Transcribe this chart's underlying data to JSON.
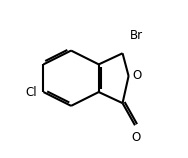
{
  "bg_color": "#ffffff",
  "line_color": "#000000",
  "lw": 1.5,
  "font_size": 8.5,
  "hcx": 0.355,
  "hcy": 0.505,
  "s": 0.175,
  "Br_label": "Br",
  "Cl_label": "Cl",
  "O_ring_label": "O",
  "O_carbonyl_label": "O"
}
